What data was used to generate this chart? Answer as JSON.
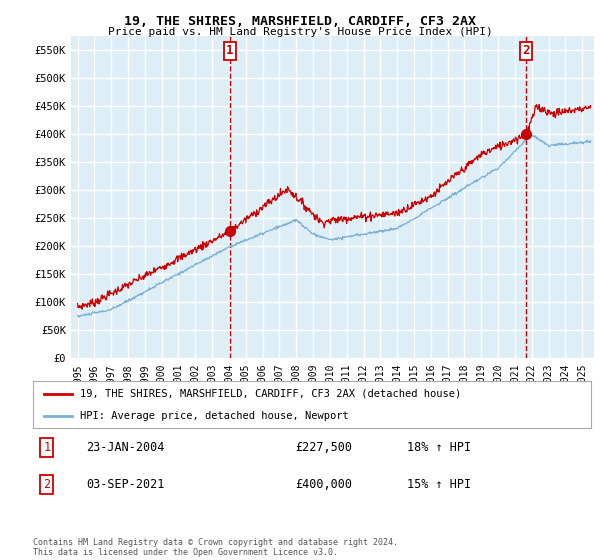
{
  "title": "19, THE SHIRES, MARSHFIELD, CARDIFF, CF3 2AX",
  "subtitle": "Price paid vs. HM Land Registry's House Price Index (HPI)",
  "ylabel_ticks": [
    "£0",
    "£50K",
    "£100K",
    "£150K",
    "£200K",
    "£250K",
    "£300K",
    "£350K",
    "£400K",
    "£450K",
    "£500K",
    "£550K"
  ],
  "ytick_vals": [
    0,
    50000,
    100000,
    150000,
    200000,
    250000,
    300000,
    350000,
    400000,
    450000,
    500000,
    550000
  ],
  "ylim": [
    0,
    575000
  ],
  "xlim_start": 1994.6,
  "xlim_end": 2025.7,
  "sale1_x": 2004.07,
  "sale1_y": 227500,
  "sale2_x": 2021.67,
  "sale2_y": 400000,
  "legend_line1": "19, THE SHIRES, MARSHFIELD, CARDIFF, CF3 2AX (detached house)",
  "legend_line2": "HPI: Average price, detached house, Newport",
  "note1_label": "1",
  "note1_date": "23-JAN-2004",
  "note1_price": "£227,500",
  "note1_hpi": "18% ↑ HPI",
  "note2_label": "2",
  "note2_date": "03-SEP-2021",
  "note2_price": "£400,000",
  "note2_hpi": "15% ↑ HPI",
  "footer": "Contains HM Land Registry data © Crown copyright and database right 2024.\nThis data is licensed under the Open Government Licence v3.0.",
  "line_color_red": "#cc0000",
  "line_color_blue": "#7ab0d4",
  "bg_color": "#ddeef7",
  "grid_color": "#ffffff"
}
